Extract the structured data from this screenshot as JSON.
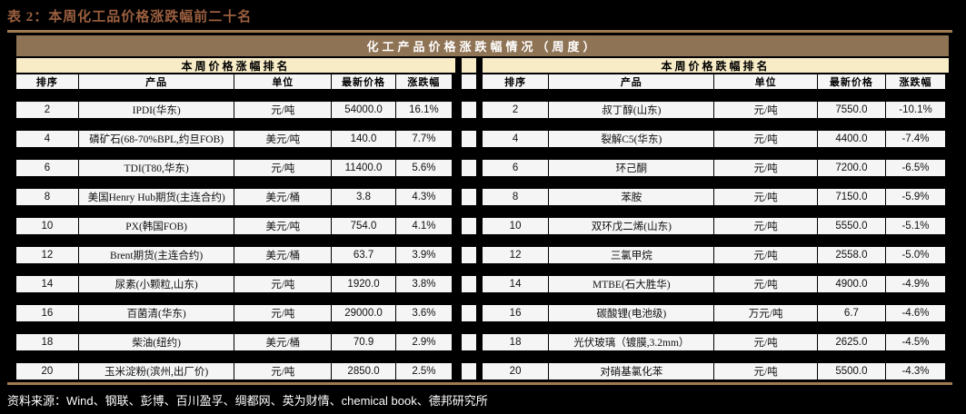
{
  "title": "表 2：本周化工品价格涨跌幅前二十名",
  "header": {
    "main": "化工产品价格涨跌幅情况（周度）"
  },
  "gainers": {
    "subheader": "本周价格涨幅排名",
    "columns": [
      "排序",
      "产品",
      "单位",
      "最新价格",
      "涨跌幅"
    ],
    "rows": [
      [
        "2",
        "IPDI(华东)",
        "元/吨",
        "54000.0",
        "16.1%"
      ],
      [
        "4",
        "磷矿石(68-70%BPL,约旦FOB)",
        "美元/吨",
        "140.0",
        "7.7%"
      ],
      [
        "6",
        "TDI(T80,华东)",
        "元/吨",
        "11400.0",
        "5.6%"
      ],
      [
        "8",
        "美国Henry Hub期货(主连合约)",
        "美元/桶",
        "3.8",
        "4.3%"
      ],
      [
        "10",
        "PX(韩国FOB)",
        "美元/吨",
        "754.0",
        "4.1%"
      ],
      [
        "12",
        "Brent期货(主连合约)",
        "美元/桶",
        "63.7",
        "3.9%"
      ],
      [
        "14",
        "尿素(小颗粒,山东)",
        "元/吨",
        "1920.0",
        "3.8%"
      ],
      [
        "16",
        "百菌清(华东)",
        "元/吨",
        "29000.0",
        "3.6%"
      ],
      [
        "18",
        "柴油(纽约)",
        "美元/桶",
        "70.9",
        "2.9%"
      ],
      [
        "20",
        "玉米淀粉(滨州,出厂价)",
        "元/吨",
        "2850.0",
        "2.5%"
      ]
    ]
  },
  "losers": {
    "subheader": "本周价格跌幅排名",
    "columns": [
      "排序",
      "产品",
      "单位",
      "最新价格",
      "涨跌幅"
    ],
    "rows": [
      [
        "2",
        "叔丁醇(山东)",
        "元/吨",
        "7550.0",
        "-10.1%"
      ],
      [
        "4",
        "裂解C5(华东)",
        "元/吨",
        "4400.0",
        "-7.4%"
      ],
      [
        "6",
        "环己酮",
        "元/吨",
        "7200.0",
        "-6.5%"
      ],
      [
        "8",
        "苯胺",
        "元/吨",
        "7150.0",
        "-5.9%"
      ],
      [
        "10",
        "双环戊二烯(山东)",
        "元/吨",
        "5550.0",
        "-5.1%"
      ],
      [
        "12",
        "三氯甲烷",
        "元/吨",
        "2558.0",
        "-5.0%"
      ],
      [
        "14",
        "MTBE(石大胜华)",
        "元/吨",
        "4900.0",
        "-4.9%"
      ],
      [
        "16",
        "碳酸锂(电池级)",
        "万元/吨",
        "6.7",
        "-4.6%"
      ],
      [
        "18",
        "光伏玻璃（镀膜,3.2mm）",
        "元/吨",
        "2625.0",
        "-4.5%"
      ],
      [
        "20",
        "对硝基氯化苯",
        "元/吨",
        "5500.0",
        "-4.3%"
      ]
    ]
  },
  "footer": {
    "source": "资料来源：Wind、钢联、彭博、百川盈孚、绸都网、英为财情、chemical book、德邦研究所"
  },
  "colors": {
    "background": "#000000",
    "title_text": "#9B5F3F",
    "header_bar": "#8F7355",
    "subheader_bg": "#F8ECC7",
    "cell_bg": "#F5F5F5",
    "rule": "#A07A50",
    "footer_text": "#FFFFFF"
  }
}
